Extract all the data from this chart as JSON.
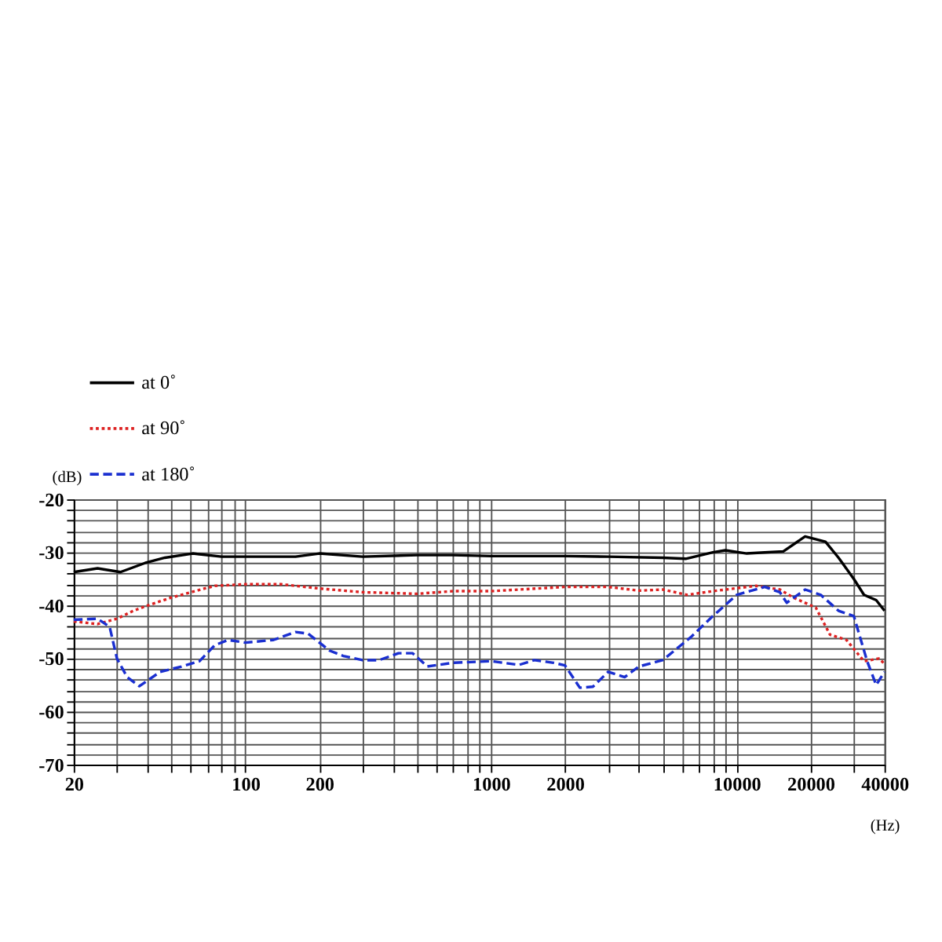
{
  "chart_data": {
    "type": "line",
    "xlabel": "(Hz)",
    "ylabel": "(dB)",
    "log": "x",
    "grid": true,
    "legend": "top left",
    "marker": "none",
    "xlim": [
      20,
      40000
    ],
    "ylim": [
      -70,
      -20
    ],
    "xticks": [
      20,
      {
        "value": 30,
        "label": null
      },
      {
        "value": 40,
        "label": null
      },
      {
        "value": 50,
        "label": null
      },
      {
        "value": 60,
        "label": null
      },
      {
        "value": 70,
        "label": null
      },
      {
        "value": 80,
        "label": null
      },
      {
        "value": 90,
        "label": null
      },
      100,
      200,
      {
        "value": 300,
        "label": null
      },
      {
        "value": 400,
        "label": null
      },
      {
        "value": 500,
        "label": null
      },
      {
        "value": 600,
        "label": null
      },
      {
        "value": 700,
        "label": null
      },
      {
        "value": 800,
        "label": null
      },
      {
        "value": 900,
        "label": null
      },
      1000,
      2000,
      {
        "value": 3000,
        "label": null
      },
      {
        "value": 4000,
        "label": null
      },
      {
        "value": 5000,
        "label": null
      },
      {
        "value": 6000,
        "label": null
      },
      {
        "value": 7000,
        "label": null
      },
      {
        "value": 8000,
        "label": null
      },
      {
        "value": 9000,
        "label": null
      },
      10000,
      20000,
      {
        "value": 30000,
        "label": null
      },
      40000
    ],
    "yticks": [
      -70,
      {
        "value": -68,
        "label": null
      },
      {
        "value": -66,
        "label": null
      },
      {
        "value": -64,
        "label": null
      },
      {
        "value": -62,
        "label": null
      },
      -60,
      {
        "value": -58,
        "label": null
      },
      {
        "value": -56,
        "label": null
      },
      {
        "value": -54,
        "label": null
      },
      {
        "value": -52,
        "label": null
      },
      -50,
      {
        "value": -48,
        "label": null
      },
      {
        "value": -46,
        "label": null
      },
      {
        "value": -44,
        "label": null
      },
      {
        "value": -42,
        "label": null
      },
      -40,
      {
        "value": -38,
        "label": null
      },
      {
        "value": -36,
        "label": null
      },
      {
        "value": -34,
        "label": null
      },
      {
        "value": -32,
        "label": null
      },
      -30,
      {
        "value": -28,
        "label": null
      },
      {
        "value": -26,
        "label": null
      },
      {
        "value": -24,
        "label": null
      },
      {
        "value": -22,
        "label": null
      },
      -20
    ],
    "series": [
      {
        "name": "at 0˚",
        "color": "#000000",
        "line_style": "solid",
        "x": [
          20,
          25,
          31,
          39,
          47,
          61,
          80,
          120,
          160,
          200,
          300,
          500,
          700,
          1000,
          2000,
          3000,
          5000,
          6200,
          8000,
          9000,
          11000,
          13000,
          15500,
          19000,
          23000,
          26000,
          30000,
          33000,
          37000,
          40000
        ],
        "values": [
          -33.7,
          -33,
          -33.7,
          -32,
          -31,
          -30.2,
          -30.8,
          -30.8,
          -30.8,
          -30.2,
          -30.8,
          -30.5,
          -30.5,
          -30.7,
          -30.7,
          -30.8,
          -31,
          -31.2,
          -30,
          -29.6,
          -30.2,
          -30,
          -29.8,
          -27,
          -28,
          -31,
          -35,
          -38,
          -39,
          -41
        ]
      },
      {
        "name": "at 90˚",
        "color": "#dd2222",
        "line_style": "dotted",
        "x": [
          20,
          25,
          30,
          35,
          40,
          50,
          60,
          75,
          100,
          140,
          200,
          300,
          500,
          700,
          1000,
          2000,
          3000,
          4000,
          5000,
          6300,
          8000,
          12000,
          15000,
          17000,
          21000,
          24000,
          28000,
          33000,
          38000,
          40000
        ],
        "values": [
          -43,
          -43.5,
          -42.5,
          -41,
          -40,
          -38.5,
          -37.5,
          -36.3,
          -36,
          -36,
          -36.8,
          -37.5,
          -37.8,
          -37.3,
          -37.3,
          -36.5,
          -36.5,
          -37.2,
          -37,
          -38,
          -37.3,
          -36.3,
          -37,
          -38.5,
          -40.4,
          -45.5,
          -46.5,
          -50.5,
          -50,
          -51
        ]
      },
      {
        "name": "at 180˚",
        "color": "#1a2fd0",
        "line_style": "dashed",
        "x": [
          20,
          25,
          28,
          30,
          33,
          37,
          45,
          55,
          65,
          75,
          85,
          100,
          130,
          160,
          180,
          220,
          250,
          300,
          350,
          420,
          480,
          550,
          700,
          1000,
          1300,
          1500,
          1800,
          2000,
          2300,
          2600,
          3000,
          3500,
          4000,
          5000,
          6500,
          8000,
          10000,
          13000,
          15000,
          16000,
          19000,
          22000,
          26000,
          30000,
          34000,
          37000,
          40000
        ],
        "values": [
          -42.7,
          -42.5,
          -44,
          -50,
          -53.5,
          -55.2,
          -52.5,
          -51.5,
          -50.5,
          -47.5,
          -46.5,
          -47,
          -46.5,
          -45,
          -45.3,
          -48.5,
          -49.5,
          -50.3,
          -50.3,
          -49,
          -49,
          -51.5,
          -50.8,
          -50.5,
          -51.2,
          -50.3,
          -50.8,
          -51.3,
          -55.5,
          -55.3,
          -52.5,
          -53.5,
          -51.5,
          -50.3,
          -46,
          -42,
          -38,
          -36.5,
          -37.5,
          -39.5,
          -37,
          -38,
          -41,
          -42,
          -50.5,
          -55,
          -52.5
        ]
      }
    ]
  }
}
